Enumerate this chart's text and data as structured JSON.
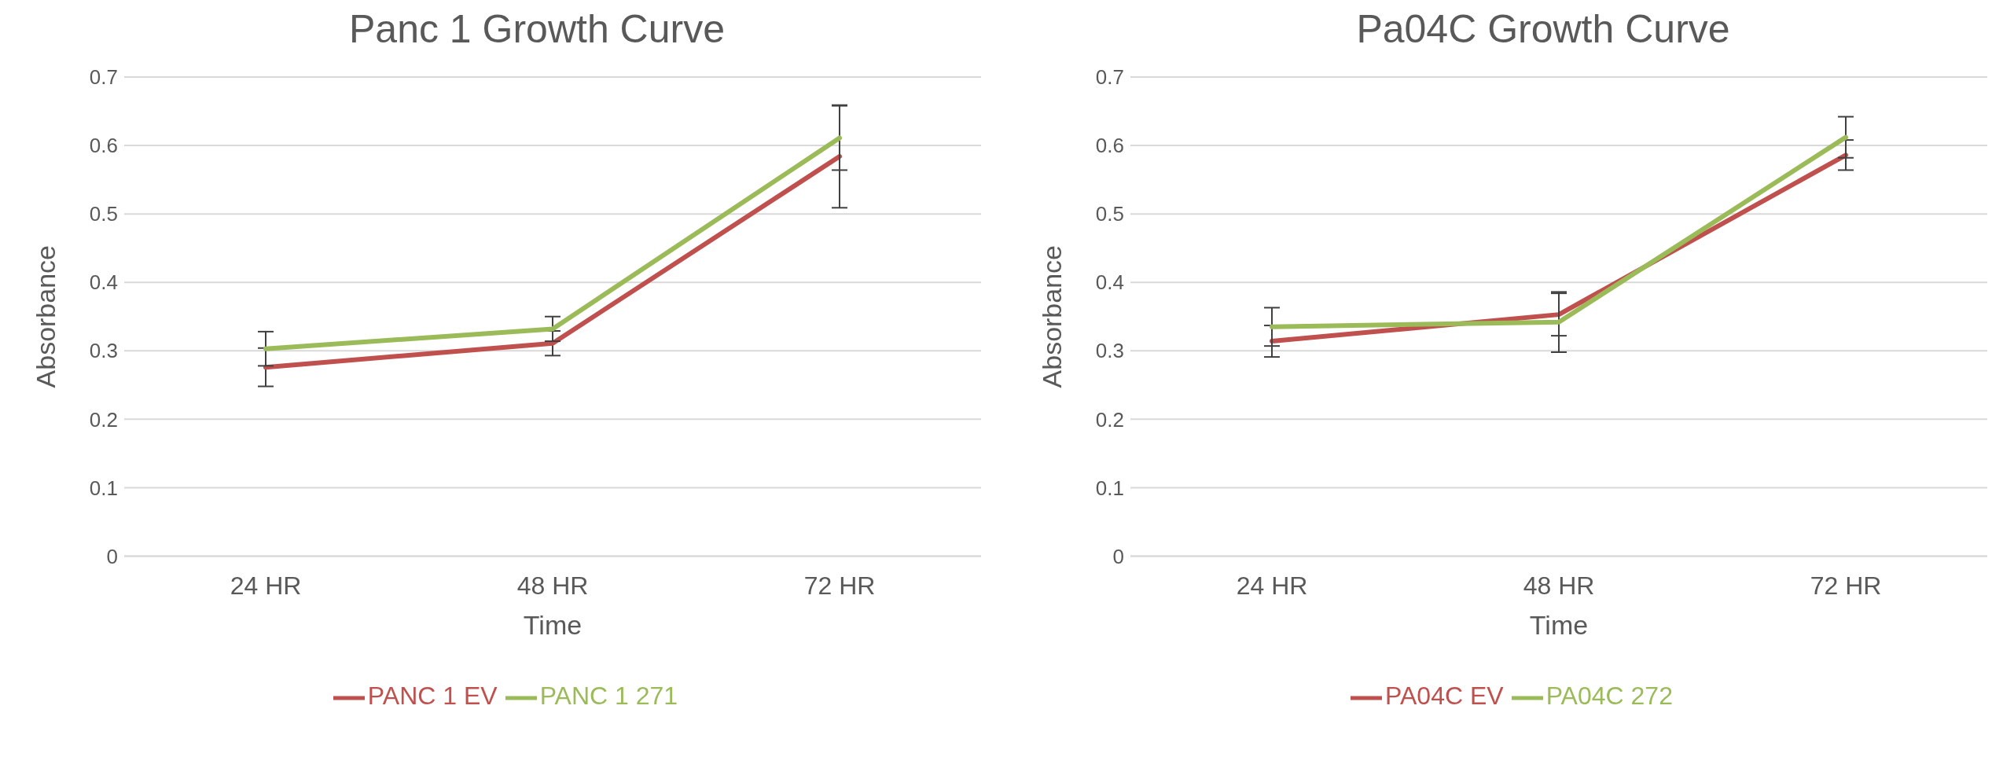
{
  "chart_data": [
    {
      "type": "line",
      "title": "Panc 1 Growth Curve",
      "xlabel": "Time",
      "ylabel": "Absorbance",
      "categories": [
        "24 HR",
        "48 HR",
        "72 HR"
      ],
      "series": [
        {
          "name": "PANC 1 EV",
          "color": "#c0504d",
          "values": [
            0.276,
            0.311,
            0.584
          ],
          "errors": [
            0.028,
            0.018,
            0.075
          ]
        },
        {
          "name": "PANC 1 271",
          "color": "#9bbb59",
          "values": [
            0.303,
            0.332,
            0.611
          ],
          "errors": [
            0.025,
            0.018,
            0.047
          ]
        }
      ],
      "ylim": [
        0,
        0.7
      ],
      "yticks": [
        0,
        0.1,
        0.2,
        0.3,
        0.4,
        0.5,
        0.6,
        0.7
      ],
      "grid": "y",
      "legend": "bottom",
      "marker": "none",
      "line_style": "solid"
    },
    {
      "type": "line",
      "title": "Pa04C Growth Curve",
      "xlabel": "Time",
      "ylabel": "Absorbance",
      "categories": [
        "24 HR",
        "48 HR",
        "72 HR"
      ],
      "series": [
        {
          "name": "PA04C EV",
          "color": "#c0504d",
          "values": [
            0.314,
            0.353,
            0.586
          ],
          "errors": [
            0.023,
            0.031,
            0.022
          ]
        },
        {
          "name": "PA04C 272",
          "color": "#9bbb59",
          "values": [
            0.335,
            0.342,
            0.612
          ],
          "errors": [
            0.028,
            0.044,
            0.03
          ]
        }
      ],
      "ylim": [
        0,
        0.7
      ],
      "yticks": [
        0,
        0.1,
        0.2,
        0.3,
        0.4,
        0.5,
        0.6,
        0.7
      ],
      "grid": "y",
      "legend": "bottom",
      "marker": "none",
      "line_style": "solid"
    }
  ]
}
